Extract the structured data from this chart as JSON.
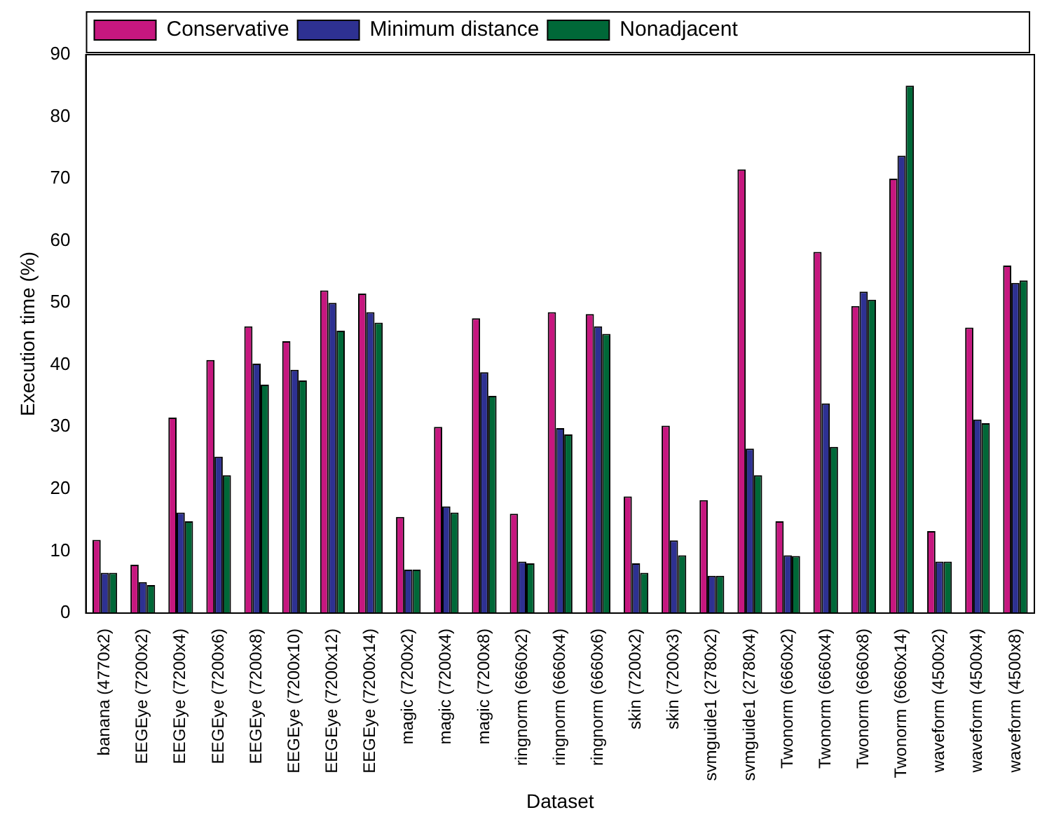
{
  "chart_data": {
    "type": "bar",
    "xlabel": "Dataset",
    "ylabel": "Execution time (%)",
    "categories": [
      "banana (4770x2)",
      "EEGEye (7200x2)",
      "EEGEye (7200x4)",
      "EEGEye (7200x6)",
      "EEGEye (7200x8)",
      "EEGEye (7200x10)",
      "EEGEye (7200x12)",
      "EEGEye (7200x14)",
      "magic (7200x2)",
      "magic (7200x4)",
      "magic (7200x8)",
      "ringnorm (6660x2)",
      "ringnorm (6660x4)",
      "ringnorm (6660x6)",
      "skin (7200x2)",
      "skin (7200x3)",
      "svmguide1 (2780x2)",
      "svmguide1 (2780x4)",
      "Twonorm (6660x2)",
      "Twonorm (6660x4)",
      "Twonorm (6660x8)",
      "Twonorm (6660x14)",
      "waveform (4500x2)",
      "waveform (4500x4)",
      "waveform (4500x8)"
    ],
    "series": [
      {
        "name": "Conservative",
        "color": "#c6177f",
        "values": [
          11.8,
          7.8,
          31.5,
          40.8,
          46.2,
          43.8,
          52,
          51.5,
          15.5,
          30,
          47.5,
          16,
          48.5,
          48.2,
          18.8,
          30.2,
          18.2,
          71.5,
          14.8,
          58.2,
          49.5,
          70,
          13.2,
          46,
          56
        ]
      },
      {
        "name": "Minimum distance",
        "color": "#2e3192",
        "values": [
          6.5,
          5,
          16.2,
          25.2,
          40.2,
          39.2,
          50,
          48.5,
          7,
          17.2,
          38.8,
          8.3,
          29.8,
          46.2,
          8,
          11.7,
          6,
          26.5,
          9.3,
          33.8,
          51.8,
          73.7,
          8.3,
          31.2,
          53.2
        ]
      },
      {
        "name": "Nonadjacent",
        "color": "#006838",
        "values": [
          6.5,
          4.5,
          14.8,
          22.2,
          36.8,
          37.5,
          45.5,
          46.8,
          7,
          16.2,
          35,
          8,
          28.8,
          45,
          6.5,
          9.3,
          6,
          22.2,
          9.2,
          26.8,
          50.5,
          85,
          8.3,
          30.6,
          53.6
        ]
      }
    ],
    "ylim": [
      0,
      90
    ],
    "yticks": [
      0,
      10,
      20,
      30,
      40,
      50,
      60,
      70,
      80,
      90
    ],
    "grid": false,
    "legend": "top left"
  }
}
